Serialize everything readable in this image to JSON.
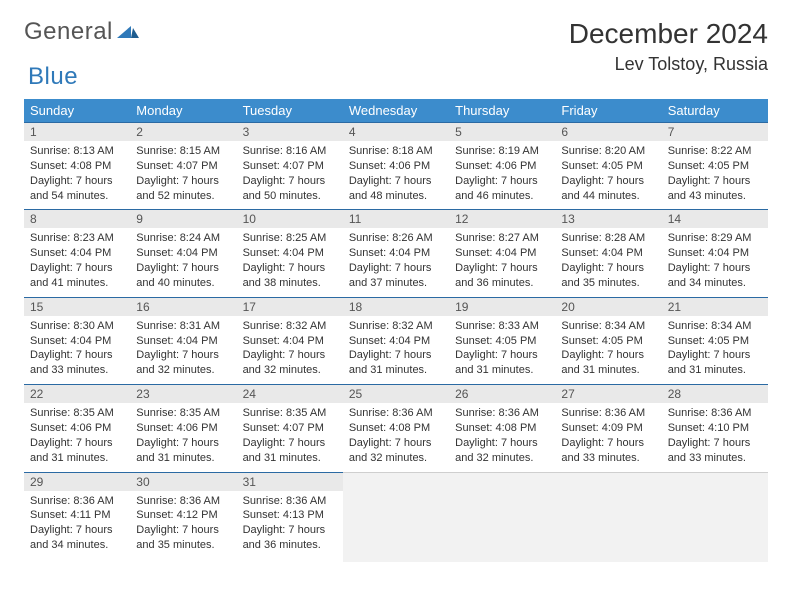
{
  "brand": {
    "general": "General",
    "blue": "Blue"
  },
  "title": "December 2024",
  "location": "Lev Tolstoy, Russia",
  "colors": {
    "header_bg": "#3c8ccc",
    "header_text": "#ffffff",
    "row_divider": "#2b6aa3",
    "daynum_bg": "#e9e9e9",
    "blank_bg": "#f2f2f2",
    "body_text": "#333333",
    "brand_blue": "#2f79b9",
    "brand_gray": "#555555"
  },
  "day_headers": [
    "Sunday",
    "Monday",
    "Tuesday",
    "Wednesday",
    "Thursday",
    "Friday",
    "Saturday"
  ],
  "days": [
    {
      "n": 1,
      "sunrise": "8:13 AM",
      "sunset": "4:08 PM",
      "daylight": "7 hours and 54 minutes."
    },
    {
      "n": 2,
      "sunrise": "8:15 AM",
      "sunset": "4:07 PM",
      "daylight": "7 hours and 52 minutes."
    },
    {
      "n": 3,
      "sunrise": "8:16 AM",
      "sunset": "4:07 PM",
      "daylight": "7 hours and 50 minutes."
    },
    {
      "n": 4,
      "sunrise": "8:18 AM",
      "sunset": "4:06 PM",
      "daylight": "7 hours and 48 minutes."
    },
    {
      "n": 5,
      "sunrise": "8:19 AM",
      "sunset": "4:06 PM",
      "daylight": "7 hours and 46 minutes."
    },
    {
      "n": 6,
      "sunrise": "8:20 AM",
      "sunset": "4:05 PM",
      "daylight": "7 hours and 44 minutes."
    },
    {
      "n": 7,
      "sunrise": "8:22 AM",
      "sunset": "4:05 PM",
      "daylight": "7 hours and 43 minutes."
    },
    {
      "n": 8,
      "sunrise": "8:23 AM",
      "sunset": "4:04 PM",
      "daylight": "7 hours and 41 minutes."
    },
    {
      "n": 9,
      "sunrise": "8:24 AM",
      "sunset": "4:04 PM",
      "daylight": "7 hours and 40 minutes."
    },
    {
      "n": 10,
      "sunrise": "8:25 AM",
      "sunset": "4:04 PM",
      "daylight": "7 hours and 38 minutes."
    },
    {
      "n": 11,
      "sunrise": "8:26 AM",
      "sunset": "4:04 PM",
      "daylight": "7 hours and 37 minutes."
    },
    {
      "n": 12,
      "sunrise": "8:27 AM",
      "sunset": "4:04 PM",
      "daylight": "7 hours and 36 minutes."
    },
    {
      "n": 13,
      "sunrise": "8:28 AM",
      "sunset": "4:04 PM",
      "daylight": "7 hours and 35 minutes."
    },
    {
      "n": 14,
      "sunrise": "8:29 AM",
      "sunset": "4:04 PM",
      "daylight": "7 hours and 34 minutes."
    },
    {
      "n": 15,
      "sunrise": "8:30 AM",
      "sunset": "4:04 PM",
      "daylight": "7 hours and 33 minutes."
    },
    {
      "n": 16,
      "sunrise": "8:31 AM",
      "sunset": "4:04 PM",
      "daylight": "7 hours and 32 minutes."
    },
    {
      "n": 17,
      "sunrise": "8:32 AM",
      "sunset": "4:04 PM",
      "daylight": "7 hours and 32 minutes."
    },
    {
      "n": 18,
      "sunrise": "8:32 AM",
      "sunset": "4:04 PM",
      "daylight": "7 hours and 31 minutes."
    },
    {
      "n": 19,
      "sunrise": "8:33 AM",
      "sunset": "4:05 PM",
      "daylight": "7 hours and 31 minutes."
    },
    {
      "n": 20,
      "sunrise": "8:34 AM",
      "sunset": "4:05 PM",
      "daylight": "7 hours and 31 minutes."
    },
    {
      "n": 21,
      "sunrise": "8:34 AM",
      "sunset": "4:05 PM",
      "daylight": "7 hours and 31 minutes."
    },
    {
      "n": 22,
      "sunrise": "8:35 AM",
      "sunset": "4:06 PM",
      "daylight": "7 hours and 31 minutes."
    },
    {
      "n": 23,
      "sunrise": "8:35 AM",
      "sunset": "4:06 PM",
      "daylight": "7 hours and 31 minutes."
    },
    {
      "n": 24,
      "sunrise": "8:35 AM",
      "sunset": "4:07 PM",
      "daylight": "7 hours and 31 minutes."
    },
    {
      "n": 25,
      "sunrise": "8:36 AM",
      "sunset": "4:08 PM",
      "daylight": "7 hours and 32 minutes."
    },
    {
      "n": 26,
      "sunrise": "8:36 AM",
      "sunset": "4:08 PM",
      "daylight": "7 hours and 32 minutes."
    },
    {
      "n": 27,
      "sunrise": "8:36 AM",
      "sunset": "4:09 PM",
      "daylight": "7 hours and 33 minutes."
    },
    {
      "n": 28,
      "sunrise": "8:36 AM",
      "sunset": "4:10 PM",
      "daylight": "7 hours and 33 minutes."
    },
    {
      "n": 29,
      "sunrise": "8:36 AM",
      "sunset": "4:11 PM",
      "daylight": "7 hours and 34 minutes."
    },
    {
      "n": 30,
      "sunrise": "8:36 AM",
      "sunset": "4:12 PM",
      "daylight": "7 hours and 35 minutes."
    },
    {
      "n": 31,
      "sunrise": "8:36 AM",
      "sunset": "4:13 PM",
      "daylight": "7 hours and 36 minutes."
    }
  ],
  "labels": {
    "sunrise": "Sunrise: ",
    "sunset": "Sunset: ",
    "daylight": "Daylight: "
  },
  "layout": {
    "first_day_offset": 0,
    "total_cells": 35
  }
}
